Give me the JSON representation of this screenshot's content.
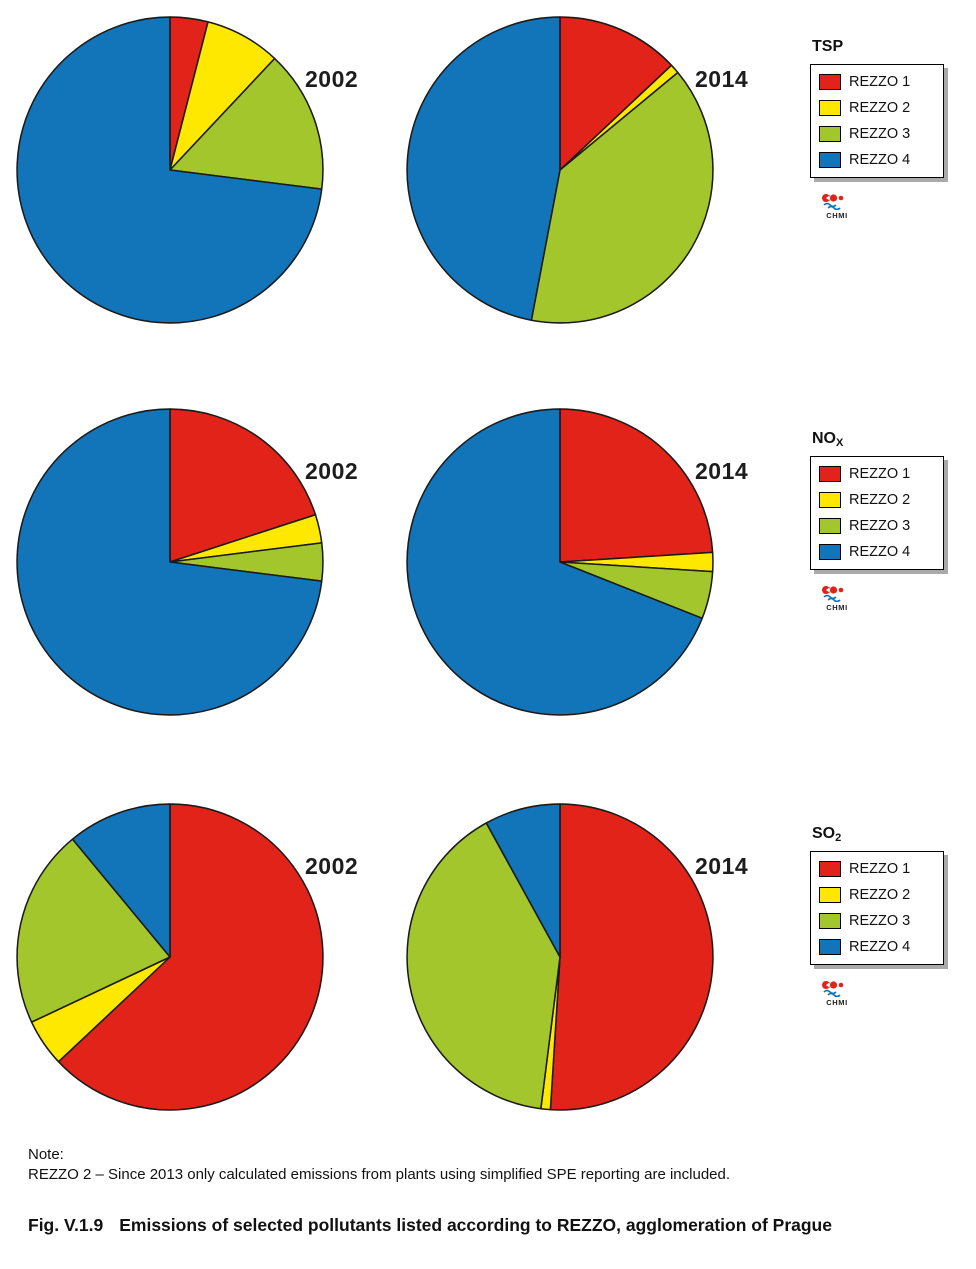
{
  "logo_text": "CHMI",
  "figure": {
    "note_label": "Note:",
    "note_text": "REZZO 2 – Since 2013 only calculated emissions from plants using simplified SPE reporting are included.",
    "caption_fig": "Fig. V.1.9",
    "caption_text": "Emissions of selected pollutants listed according to REZZO, agglomeration of Prague"
  },
  "colors": {
    "rezzo1": "#e2231a",
    "rezzo2": "#ffe800",
    "rezzo3": "#a2c62b",
    "rezzo4": "#1274b9",
    "slice_outline": "#1a1a1a"
  },
  "chart_data": [
    {
      "type": "pie",
      "pollutant": {
        "main": "TSP",
        "sub": ""
      },
      "legend": [
        "REZZO 1",
        "REZZO 2",
        "REZZO 3",
        "REZZO 4"
      ],
      "colors": [
        "#e2231a",
        "#ffe800",
        "#a2c62b",
        "#1274b9"
      ],
      "units": "percent_share_estimated",
      "start_angle_deg": -90,
      "direction": "clockwise",
      "charts": [
        {
          "year": "2002",
          "values": [
            4,
            8,
            15,
            73
          ]
        },
        {
          "year": "2014",
          "values": [
            13,
            1,
            39,
            47
          ]
        }
      ]
    },
    {
      "type": "pie",
      "pollutant": {
        "main": "NO",
        "sub": "X"
      },
      "legend": [
        "REZZO 1",
        "REZZO 2",
        "REZZO 3",
        "REZZO 4"
      ],
      "colors": [
        "#e2231a",
        "#ffe800",
        "#a2c62b",
        "#1274b9"
      ],
      "units": "percent_share_estimated",
      "start_angle_deg": -90,
      "direction": "clockwise",
      "charts": [
        {
          "year": "2002",
          "values": [
            20,
            3,
            4,
            73
          ]
        },
        {
          "year": "2014",
          "values": [
            24,
            2,
            5,
            69
          ]
        }
      ]
    },
    {
      "type": "pie",
      "pollutant": {
        "main": "SO",
        "sub": "2"
      },
      "legend": [
        "REZZO 1",
        "REZZO 2",
        "REZZO 3",
        "REZZO 4"
      ],
      "colors": [
        "#e2231a",
        "#ffe800",
        "#a2c62b",
        "#1274b9"
      ],
      "units": "percent_share_estimated",
      "start_angle_deg": -90,
      "direction": "clockwise",
      "charts": [
        {
          "year": "2002",
          "values": [
            63,
            5,
            21,
            11
          ]
        },
        {
          "year": "2014",
          "values": [
            51,
            1,
            40,
            8
          ]
        }
      ]
    }
  ]
}
